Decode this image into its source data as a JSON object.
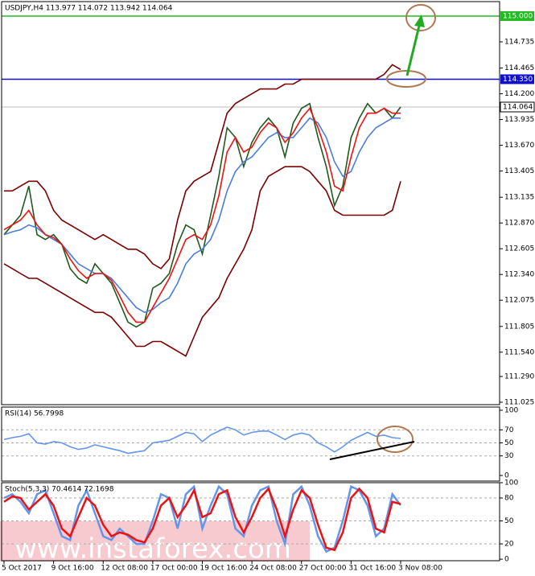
{
  "chart_data": [
    {
      "type": "line",
      "title": "USDJPY,H4 113.977 114.072 113.942 114.064",
      "ylim": [
        111.0,
        115.149
      ],
      "yticks": [
        {
          "value": 111.025,
          "label": "111.025"
        },
        {
          "value": 111.29,
          "label": "111.290"
        },
        {
          "value": 111.54,
          "label": "111.540"
        },
        {
          "value": 111.805,
          "label": "111.805"
        },
        {
          "value": 112.075,
          "label": "112.075"
        },
        {
          "value": 112.34,
          "label": "112.340"
        },
        {
          "value": 112.605,
          "label": "112.605"
        },
        {
          "value": 112.87,
          "label": "112.870"
        },
        {
          "value": 113.135,
          "label": "113.135"
        },
        {
          "value": 113.405,
          "label": "113.405"
        },
        {
          "value": 113.67,
          "label": "113.670"
        },
        {
          "value": 113.935,
          "label": "113.935"
        },
        {
          "value": 114.2,
          "label": "114.200"
        },
        {
          "value": 114.465,
          "label": "114.465"
        },
        {
          "value": 114.735,
          "label": "114.735"
        }
      ],
      "levels": [
        {
          "value": 115.0,
          "label": "115.000",
          "color": "#22bb22"
        },
        {
          "value": 114.35,
          "label": "114.350",
          "color": "#1010cc"
        }
      ],
      "last_price": {
        "value": 114.064,
        "label": "114.064"
      },
      "series": [
        {
          "color": "#7a0000",
          "values": [
            113.2,
            113.2,
            113.25,
            113.3,
            113.3,
            113.2,
            113.0,
            112.9,
            112.85,
            112.8,
            112.75,
            112.7,
            112.75,
            112.7,
            112.65,
            112.6,
            112.6,
            112.55,
            112.45,
            112.4,
            112.5,
            112.9,
            113.2,
            113.3,
            113.35,
            113.4,
            113.7,
            114.0,
            114.1,
            114.15,
            114.2,
            114.25,
            114.25,
            114.25,
            114.3,
            114.3,
            114.35,
            114.35,
            114.35,
            114.35,
            114.35,
            114.35,
            114.35,
            114.35,
            114.35,
            114.35,
            114.4,
            114.5,
            114.45
          ]
        },
        {
          "color": "#7a0000",
          "values": [
            112.45,
            112.4,
            112.35,
            112.3,
            112.3,
            112.25,
            112.2,
            112.15,
            112.1,
            112.05,
            112.0,
            111.95,
            111.95,
            111.9,
            111.8,
            111.7,
            111.6,
            111.6,
            111.65,
            111.65,
            111.6,
            111.55,
            111.5,
            111.7,
            111.9,
            112.0,
            112.1,
            112.3,
            112.45,
            112.6,
            112.8,
            113.2,
            113.35,
            113.4,
            113.45,
            113.45,
            113.45,
            113.4,
            113.3,
            113.2,
            113.0,
            112.95,
            112.95,
            112.95,
            112.95,
            112.95,
            112.95,
            113.0,
            113.3
          ]
        },
        {
          "color": "#1e5a1e",
          "values": [
            112.75,
            112.85,
            112.95,
            113.25,
            112.75,
            112.7,
            112.75,
            112.65,
            112.4,
            112.3,
            112.25,
            112.45,
            112.35,
            112.25,
            112.05,
            111.85,
            111.8,
            111.85,
            112.2,
            112.25,
            112.35,
            112.65,
            112.85,
            112.8,
            112.55,
            112.95,
            113.35,
            113.85,
            113.75,
            113.45,
            113.7,
            113.85,
            113.95,
            113.85,
            113.55,
            113.9,
            114.05,
            114.1,
            113.75,
            113.45,
            113.05,
            113.25,
            113.75,
            113.95,
            114.1,
            114.0,
            114.05,
            113.95,
            114.064
          ]
        },
        {
          "color": "#4a7fd8",
          "values": [
            112.75,
            112.78,
            112.8,
            112.85,
            112.82,
            112.75,
            112.7,
            112.65,
            112.55,
            112.45,
            112.4,
            112.35,
            112.35,
            112.3,
            112.2,
            112.1,
            112.0,
            111.95,
            111.98,
            112.05,
            112.1,
            112.25,
            112.45,
            112.55,
            112.6,
            112.7,
            112.9,
            113.2,
            113.4,
            113.5,
            113.55,
            113.65,
            113.75,
            113.8,
            113.75,
            113.75,
            113.85,
            113.95,
            113.9,
            113.75,
            113.5,
            113.35,
            113.4,
            113.6,
            113.75,
            113.85,
            113.9,
            113.95,
            113.95
          ]
        },
        {
          "color": "#ee1111",
          "values": [
            112.8,
            112.85,
            112.9,
            113.0,
            112.85,
            112.75,
            112.72,
            112.65,
            112.5,
            112.38,
            112.3,
            112.35,
            112.35,
            112.28,
            112.12,
            111.95,
            111.85,
            111.85,
            112.0,
            112.15,
            112.3,
            112.5,
            112.7,
            112.75,
            112.7,
            112.85,
            113.15,
            113.6,
            113.75,
            113.6,
            113.65,
            113.8,
            113.9,
            113.85,
            113.7,
            113.8,
            113.95,
            114.05,
            113.85,
            113.6,
            113.25,
            113.2,
            113.55,
            113.85,
            114.0,
            114.0,
            114.05,
            114.0,
            114.0
          ]
        }
      ]
    },
    {
      "type": "line",
      "title": "RSI(14) 56.7998",
      "ylim": [
        -8.6,
        104.9
      ],
      "yticks": [
        0,
        30,
        50,
        70,
        100
      ],
      "series": [
        {
          "color": "#6495ed",
          "values": [
            55,
            58,
            60,
            64,
            50,
            48,
            52,
            50,
            44,
            40,
            42,
            47,
            44,
            41,
            38,
            34,
            36,
            38,
            50,
            52,
            54,
            60,
            66,
            64,
            52,
            62,
            68,
            74,
            70,
            62,
            66,
            68,
            68,
            62,
            55,
            62,
            65,
            62,
            50,
            44,
            36,
            44,
            54,
            60,
            66,
            60,
            62,
            58,
            56.8
          ]
        }
      ]
    },
    {
      "type": "line",
      "title": "Stoch(5,3,3) 70.4614 72.1698",
      "ylim": [
        -2,
        100
      ],
      "yticks": [
        0,
        20,
        50,
        80,
        100
      ],
      "watermark": "www.instaforex.com",
      "categories": [
        "5 Oct 2017",
        null,
        null,
        null,
        null,
        null,
        "9 Oct 16:00",
        null,
        null,
        null,
        null,
        null,
        "12 Oct 08:00",
        null,
        null,
        null,
        null,
        null,
        "17 Oct 00:00",
        null,
        null,
        null,
        null,
        null,
        "19 Oct 16:00",
        null,
        null,
        null,
        null,
        null,
        "24 Oct 08:00",
        null,
        null,
        null,
        null,
        null,
        "27 Oct 00:00",
        null,
        null,
        null,
        null,
        null,
        "31 Oct 16:00",
        null,
        null,
        null,
        null,
        null,
        "3 Nov 08:00"
      ],
      "series": [
        {
          "color": "#6495ed",
          "values": [
            80,
            85,
            75,
            60,
            85,
            90,
            60,
            30,
            25,
            70,
            90,
            60,
            30,
            25,
            40,
            30,
            20,
            20,
            50,
            85,
            80,
            40,
            85,
            95,
            40,
            70,
            95,
            85,
            40,
            30,
            70,
            90,
            95,
            50,
            20,
            85,
            95,
            70,
            30,
            10,
            15,
            50,
            95,
            90,
            70,
            30,
            40,
            85,
            70.46
          ]
        },
        {
          "color": "#ee1111",
          "values": [
            75,
            82,
            80,
            65,
            75,
            85,
            70,
            40,
            30,
            55,
            80,
            70,
            45,
            30,
            35,
            32,
            25,
            22,
            40,
            70,
            80,
            55,
            70,
            90,
            55,
            60,
            85,
            90,
            55,
            35,
            55,
            80,
            92,
            65,
            30,
            65,
            90,
            80,
            45,
            15,
            12,
            35,
            80,
            92,
            80,
            40,
            35,
            75,
            72.17
          ]
        }
      ]
    }
  ]
}
